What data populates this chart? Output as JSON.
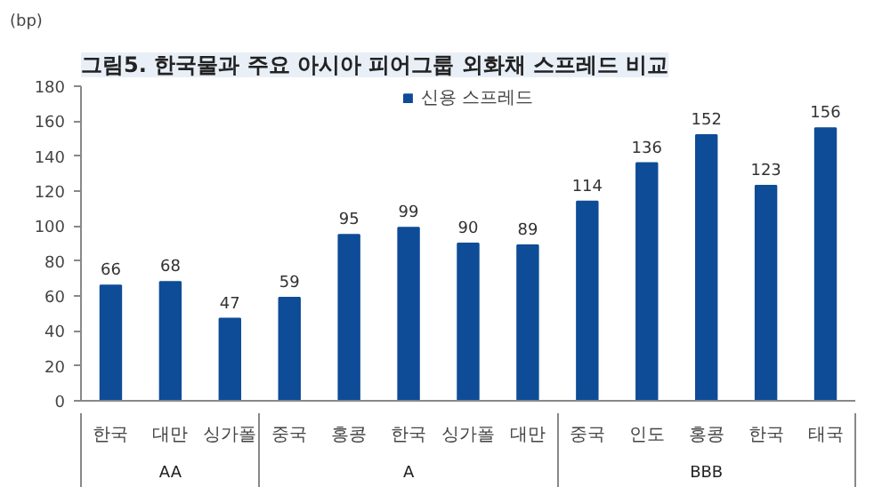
{
  "chart_data": {
    "type": "bar",
    "title": "그림5. 한국물과 주요 아시아 피어그룹 외화채 스프레드 비교",
    "ylabel": "(bp)",
    "categories": [
      "한국",
      "대만",
      "싱가폴",
      "중국",
      "홍콩",
      "한국",
      "싱가폴",
      "대만",
      "중국",
      "인도",
      "홍콩",
      "한국",
      "태국"
    ],
    "series": [
      {
        "name": "신용 스프레드",
        "color": "#0f4c97",
        "values": [
          66,
          68,
          47,
          59,
          95,
          99,
          90,
          89,
          114,
          136,
          152,
          123,
          156
        ]
      }
    ],
    "ylim": [
      0,
      180
    ],
    "yticks": [
      0,
      20,
      40,
      60,
      80,
      100,
      120,
      140,
      160,
      180
    ],
    "annotations": [
      "AA",
      "A",
      "BBB"
    ],
    "data_labels": true,
    "legend": "top",
    "grid": false
  }
}
